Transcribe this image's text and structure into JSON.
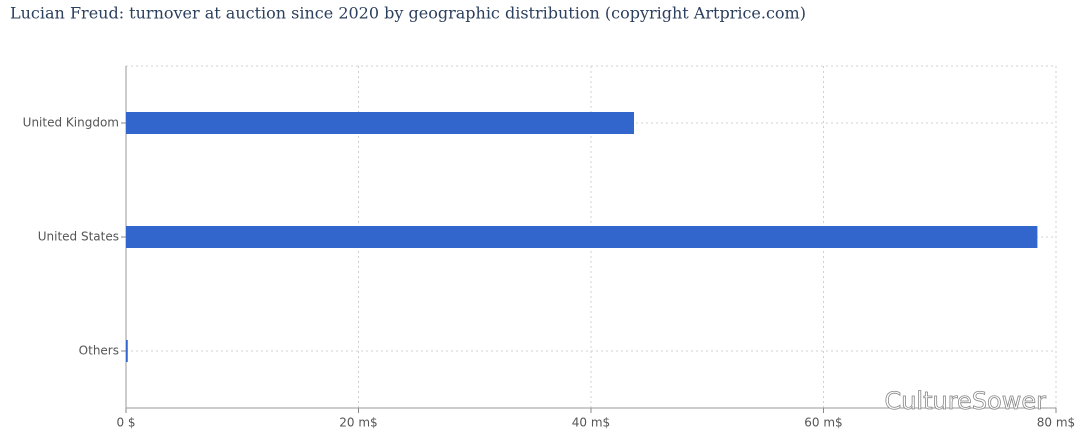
{
  "chart_data": {
    "type": "hbar",
    "title": "Lucian Freud: turnover at auction since 2020 by geographic distribution (copyright Artprice.com)",
    "categories": [
      "United Kingdom",
      "United States",
      "Others"
    ],
    "values": [
      43.7,
      78.4,
      0.15
    ],
    "color": "#3366cc",
    "xlim": [
      0,
      80
    ],
    "xticks": [
      {
        "value": 0,
        "label": "0 $"
      },
      {
        "value": 20,
        "label": "20 m$"
      },
      {
        "value": 40,
        "label": "40 m$"
      },
      {
        "value": 60,
        "label": "60 m$"
      },
      {
        "value": 80,
        "label": "80 m$"
      }
    ],
    "grid": true,
    "watermark": "CultureSower"
  }
}
